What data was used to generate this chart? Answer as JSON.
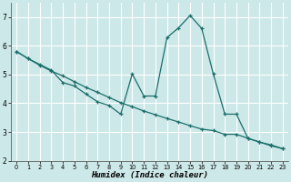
{
  "xlabel": "Humidex (Indice chaleur)",
  "bg_color": "#cde8e8",
  "grid_color": "#ffffff",
  "line_color": "#1a6e6a",
  "series1_x": [
    0,
    1,
    2,
    3,
    4,
    5,
    6,
    7,
    8,
    9,
    10,
    11,
    12,
    13,
    14,
    15,
    16,
    17,
    18,
    19,
    20,
    21,
    22,
    23
  ],
  "series1_y": [
    5.8,
    5.55,
    5.32,
    5.12,
    4.95,
    4.75,
    4.55,
    4.38,
    4.2,
    4.02,
    3.88,
    3.73,
    3.6,
    3.47,
    3.35,
    3.22,
    3.1,
    3.05,
    2.92,
    2.92,
    2.78,
    2.65,
    2.52,
    2.42
  ],
  "series2_x": [
    0,
    1,
    2,
    3,
    4,
    5,
    6,
    7,
    8,
    9,
    10,
    11,
    12,
    13,
    14,
    15,
    16,
    17,
    18,
    19,
    20,
    21,
    22,
    23
  ],
  "series2_y": [
    5.8,
    5.55,
    5.35,
    5.15,
    4.72,
    4.6,
    4.32,
    4.05,
    3.92,
    3.62,
    5.02,
    4.25,
    4.25,
    6.28,
    6.62,
    7.05,
    6.6,
    5.02,
    3.62,
    3.62,
    2.78,
    2.65,
    2.55,
    2.42
  ],
  "ylim": [
    2.0,
    7.5
  ],
  "xlim": [
    -0.5,
    23.5
  ],
  "yticks": [
    2,
    3,
    4,
    5,
    6,
    7
  ],
  "xticks": [
    0,
    1,
    2,
    3,
    4,
    5,
    6,
    7,
    8,
    9,
    10,
    11,
    12,
    13,
    14,
    15,
    16,
    17,
    18,
    19,
    20,
    21,
    22,
    23
  ]
}
